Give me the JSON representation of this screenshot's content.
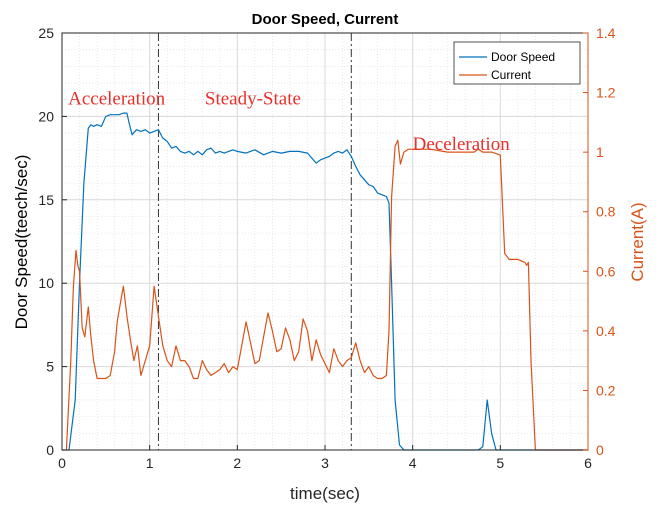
{
  "chart_data": {
    "type": "line",
    "title": "Door Speed, Current",
    "xlabel": "time(sec)",
    "ylabel_left": "Door Speed(teech/sec)",
    "ylabel_right": "Current(A)",
    "xlim": [
      0,
      6
    ],
    "ylim_left": [
      0,
      25
    ],
    "ylim_right": [
      0,
      1.4
    ],
    "x_ticks": [
      "0",
      "1",
      "2",
      "3",
      "4",
      "5",
      "6"
    ],
    "y_left_ticks": [
      "0",
      "5",
      "10",
      "15",
      "20",
      "25"
    ],
    "y_right_ticks": [
      "0",
      "0.2",
      "0.4",
      "0.6",
      "0.8",
      "1",
      "1.2",
      "1.4"
    ],
    "grid": true,
    "minor_grid": true,
    "legend_position": "top-right",
    "colors": {
      "door_speed": "#0072BD",
      "current": "#D95319",
      "annotation": "#E8302A",
      "grid": "#d9d9d9"
    },
    "phase_dividers_x": [
      1.1,
      3.3
    ],
    "annotations": [
      {
        "text": "Acceleration",
        "x": 0.07,
        "y": 20.7
      },
      {
        "text": "Steady-State",
        "x": 1.63,
        "y": 20.7
      },
      {
        "text": "Deceleration",
        "x": 4.0,
        "y": 18.0
      }
    ],
    "series": [
      {
        "name": "Door Speed",
        "axis": "left",
        "x": [
          0,
          0.08,
          0.15,
          0.2,
          0.25,
          0.3,
          0.33,
          0.36,
          0.4,
          0.45,
          0.5,
          0.55,
          0.6,
          0.65,
          0.7,
          0.74,
          0.77,
          0.8,
          0.85,
          0.9,
          0.95,
          1.0,
          1.05,
          1.1,
          1.15,
          1.2,
          1.25,
          1.3,
          1.35,
          1.4,
          1.45,
          1.5,
          1.55,
          1.6,
          1.65,
          1.7,
          1.75,
          1.8,
          1.85,
          1.9,
          1.95,
          2.0,
          2.1,
          2.2,
          2.3,
          2.4,
          2.5,
          2.6,
          2.7,
          2.8,
          2.9,
          2.95,
          3.0,
          3.05,
          3.1,
          3.15,
          3.2,
          3.25,
          3.3,
          3.35,
          3.4,
          3.45,
          3.5,
          3.55,
          3.6,
          3.65,
          3.7,
          3.73,
          3.76,
          3.8,
          3.85,
          3.9,
          4.0,
          4.5,
          4.75,
          4.8,
          4.85,
          4.9,
          4.95,
          5.0,
          6.0
        ],
        "y": [
          0,
          0,
          3,
          10,
          16,
          19.3,
          19.5,
          19.4,
          19.5,
          19.4,
          20,
          20.1,
          20.1,
          20.1,
          20.2,
          20.2,
          19.5,
          18.9,
          19.2,
          19.1,
          19.2,
          19.0,
          19.1,
          19.2,
          18.7,
          18.5,
          18.1,
          18.2,
          17.9,
          17.8,
          17.9,
          17.7,
          17.9,
          17.7,
          18.0,
          18.1,
          17.8,
          17.9,
          17.8,
          17.9,
          18.0,
          17.9,
          17.8,
          18.0,
          17.7,
          17.9,
          17.8,
          17.9,
          17.9,
          17.8,
          17.2,
          17.4,
          17.5,
          17.6,
          17.8,
          17.9,
          17.8,
          18.0,
          17.6,
          17.0,
          16.5,
          16.2,
          15.9,
          15.8,
          15.4,
          15.3,
          15.2,
          14.8,
          10,
          3,
          0.3,
          0,
          0,
          0,
          0,
          0.2,
          3.0,
          1.0,
          0,
          0,
          0
        ]
      },
      {
        "name": "Current",
        "axis": "right",
        "x": [
          0.05,
          0.1,
          0.13,
          0.16,
          0.18,
          0.2,
          0.23,
          0.26,
          0.3,
          0.33,
          0.36,
          0.4,
          0.45,
          0.5,
          0.55,
          0.6,
          0.63,
          0.67,
          0.7,
          0.74,
          0.78,
          0.82,
          0.86,
          0.9,
          0.95,
          1.0,
          1.05,
          1.1,
          1.15,
          1.2,
          1.25,
          1.3,
          1.35,
          1.4,
          1.45,
          1.5,
          1.55,
          1.6,
          1.65,
          1.7,
          1.75,
          1.8,
          1.85,
          1.9,
          1.95,
          2.0,
          2.05,
          2.1,
          2.15,
          2.2,
          2.25,
          2.3,
          2.35,
          2.4,
          2.45,
          2.5,
          2.55,
          2.6,
          2.65,
          2.7,
          2.75,
          2.8,
          2.85,
          2.9,
          2.95,
          3.0,
          3.05,
          3.1,
          3.15,
          3.2,
          3.25,
          3.3,
          3.35,
          3.4,
          3.45,
          3.5,
          3.55,
          3.6,
          3.65,
          3.7,
          3.73,
          3.76,
          3.8,
          3.83,
          3.86,
          3.9,
          3.95,
          4.0,
          4.2,
          4.4,
          4.6,
          4.7,
          4.75,
          4.8,
          4.9,
          5.0,
          5.05,
          5.1,
          5.2,
          5.28,
          5.3,
          5.32,
          5.35,
          5.4,
          6.0
        ],
        "y": [
          0,
          0.3,
          0.55,
          0.67,
          0.62,
          0.6,
          0.41,
          0.38,
          0.48,
          0.38,
          0.3,
          0.24,
          0.24,
          0.24,
          0.25,
          0.33,
          0.43,
          0.5,
          0.55,
          0.45,
          0.37,
          0.3,
          0.35,
          0.25,
          0.3,
          0.35,
          0.55,
          0.45,
          0.35,
          0.3,
          0.28,
          0.35,
          0.3,
          0.3,
          0.28,
          0.24,
          0.24,
          0.3,
          0.27,
          0.25,
          0.26,
          0.27,
          0.29,
          0.26,
          0.28,
          0.27,
          0.35,
          0.43,
          0.36,
          0.29,
          0.3,
          0.38,
          0.46,
          0.4,
          0.33,
          0.34,
          0.41,
          0.37,
          0.3,
          0.33,
          0.44,
          0.4,
          0.3,
          0.37,
          0.32,
          0.29,
          0.26,
          0.34,
          0.3,
          0.28,
          0.3,
          0.31,
          0.36,
          0.3,
          0.26,
          0.28,
          0.25,
          0.24,
          0.24,
          0.25,
          0.4,
          0.85,
          1.02,
          1.04,
          0.96,
          1.0,
          1.01,
          1.01,
          1.01,
          1.0,
          1.0,
          1.0,
          1.01,
          1.0,
          1.0,
          0.99,
          0.66,
          0.64,
          0.64,
          0.63,
          0.62,
          0.63,
          0.3,
          0,
          0
        ]
      }
    ]
  }
}
